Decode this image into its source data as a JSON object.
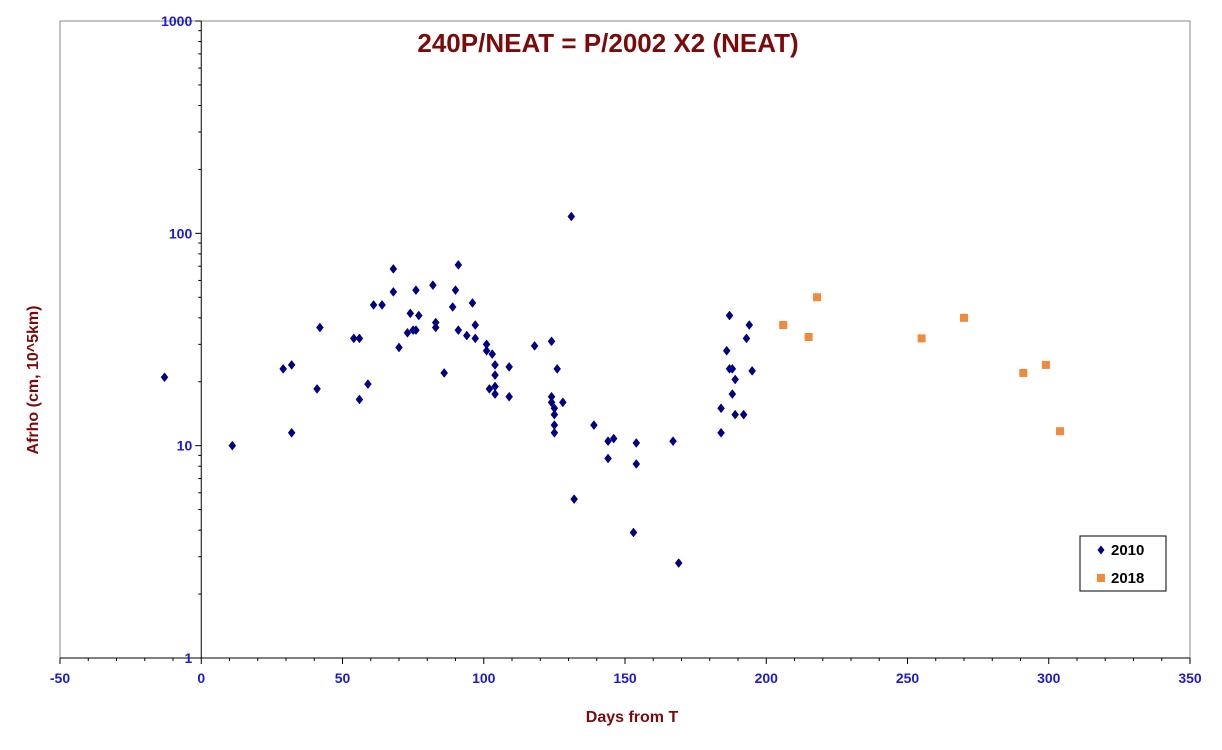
{
  "chart_data": {
    "type": "scatter",
    "title": "240P/NEAT = P/2002 X2 (NEAT)",
    "xlabel": "Days from T",
    "ylabel": "Afrho (cm, 10^5km)",
    "xlim": [
      -50,
      350
    ],
    "ylim": [
      1,
      1000
    ],
    "y_scale": "log",
    "x_ticks": [
      -50,
      0,
      50,
      100,
      150,
      200,
      250,
      300,
      350
    ],
    "y_ticks": [
      1,
      10,
      100,
      1000
    ],
    "legend_position": "bottom-right",
    "grid": false,
    "series": [
      {
        "name": "2010",
        "color": "#000080",
        "marker": "diamond",
        "points": [
          [
            -13,
            21
          ],
          [
            11,
            10
          ],
          [
            29,
            23
          ],
          [
            32,
            24
          ],
          [
            32,
            11.5
          ],
          [
            41,
            18.5
          ],
          [
            42,
            36
          ],
          [
            54,
            32
          ],
          [
            56,
            32
          ],
          [
            56,
            16.5
          ],
          [
            59,
            19.5
          ],
          [
            61,
            46
          ],
          [
            64,
            46
          ],
          [
            68,
            68
          ],
          [
            68,
            53
          ],
          [
            70,
            29
          ],
          [
            73,
            34
          ],
          [
            74,
            42
          ],
          [
            75,
            35
          ],
          [
            76,
            35
          ],
          [
            76,
            54
          ],
          [
            77,
            41
          ],
          [
            82,
            57
          ],
          [
            83,
            36
          ],
          [
            83,
            38
          ],
          [
            86,
            22
          ],
          [
            89,
            45
          ],
          [
            90,
            54
          ],
          [
            91,
            71
          ],
          [
            91,
            35
          ],
          [
            94,
            33
          ],
          [
            96,
            47
          ],
          [
            97,
            37
          ],
          [
            97,
            32
          ],
          [
            101,
            30
          ],
          [
            101,
            28
          ],
          [
            102,
            18.5
          ],
          [
            103,
            27
          ],
          [
            104,
            24
          ],
          [
            104,
            21.5
          ],
          [
            104,
            19
          ],
          [
            104,
            17.5
          ],
          [
            109,
            23.5
          ],
          [
            109,
            17
          ],
          [
            118,
            29.5
          ],
          [
            124,
            31
          ],
          [
            124,
            17
          ],
          [
            124,
            16
          ],
          [
            125,
            15
          ],
          [
            125,
            14
          ],
          [
            125,
            12.5
          ],
          [
            125,
            11.5
          ],
          [
            126,
            23
          ],
          [
            128,
            16
          ],
          [
            131,
            120
          ],
          [
            132,
            5.6
          ],
          [
            139,
            12.5
          ],
          [
            144,
            10.5
          ],
          [
            144,
            8.7
          ],
          [
            146,
            10.8
          ],
          [
            153,
            3.9
          ],
          [
            154,
            10.3
          ],
          [
            154,
            8.2
          ],
          [
            167,
            10.5
          ],
          [
            169,
            2.8
          ],
          [
            184,
            15
          ],
          [
            184,
            11.5
          ],
          [
            186,
            28
          ],
          [
            187,
            23
          ],
          [
            187,
            41
          ],
          [
            188,
            17.5
          ],
          [
            188,
            23
          ],
          [
            189,
            14
          ],
          [
            189,
            20.5
          ],
          [
            192,
            14
          ],
          [
            193,
            32
          ],
          [
            194,
            37
          ],
          [
            195,
            22.5
          ]
        ]
      },
      {
        "name": "2018",
        "color": "#f08a3c",
        "marker": "square",
        "points": [
          [
            206,
            37
          ],
          [
            215,
            32.5
          ],
          [
            218,
            50
          ],
          [
            255,
            32
          ],
          [
            270,
            40
          ],
          [
            291,
            22
          ],
          [
            299,
            24
          ],
          [
            304,
            11.7
          ]
        ]
      }
    ]
  }
}
